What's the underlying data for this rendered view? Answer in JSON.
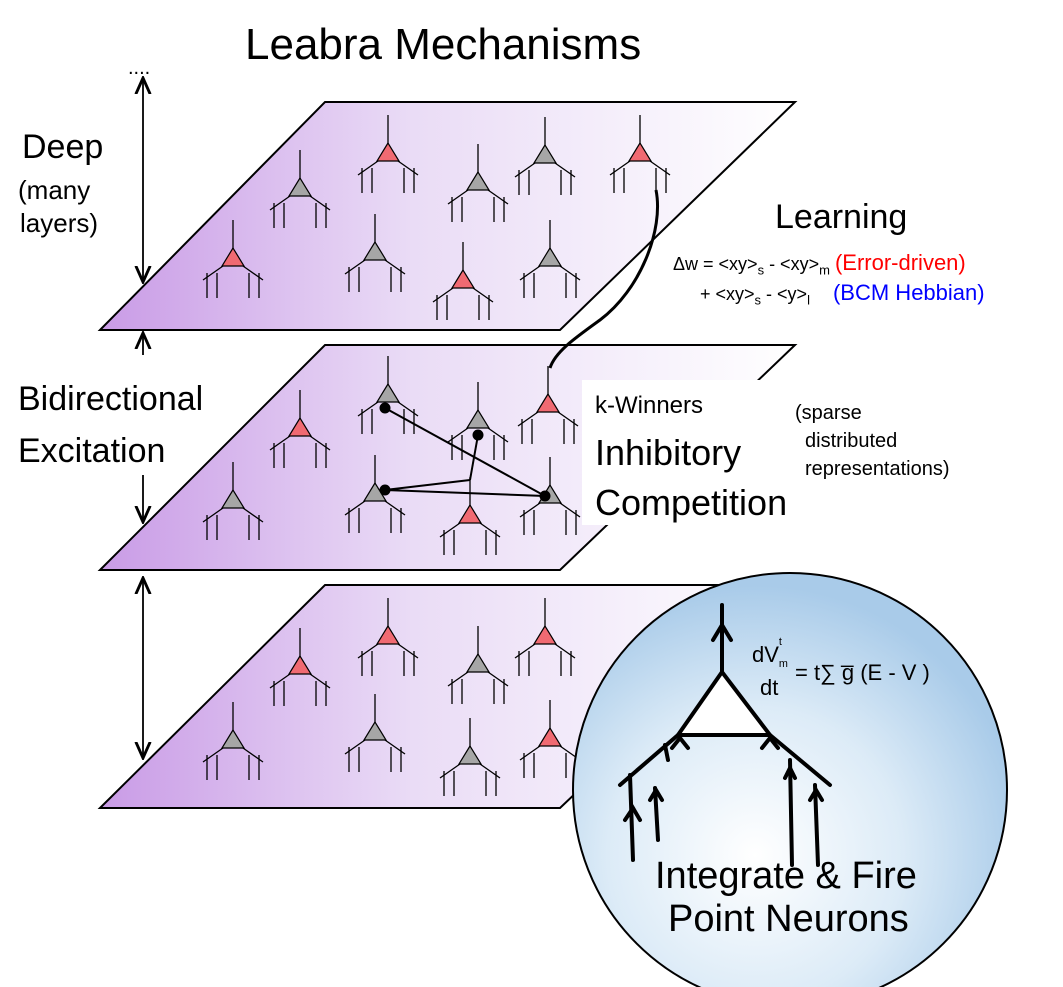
{
  "title": "Leabra Mechanisms",
  "ellipsis": "....",
  "deep": {
    "title": "Deep",
    "sub1": "(many",
    "sub2": "layers)"
  },
  "bidirectional": {
    "line1": "Bidirectional",
    "line2": "Excitation"
  },
  "learning": {
    "title": "Learning",
    "line1_prefix": "Δw = <xy>",
    "line1_s": "s",
    "line1_mid": " - <xy>",
    "line1_m": "m",
    "line1_tag": "(Error-driven)",
    "line2_prefix": "+ <xy>",
    "line2_s": "s",
    "line2_mid": " - <y>",
    "line2_l": "l",
    "line2_tag": "(BCM Hebbian)"
  },
  "kwta": {
    "line1": "k-Winners",
    "line2": "Inhibitory",
    "line3": "Competition",
    "note1": "(sparse",
    "note2": "distributed",
    "note3": "representations)"
  },
  "neuron": {
    "eq_top": "dV",
    "eq_top_sub": "m",
    "eq_top_sup": "t",
    "eq_bottom": "dt",
    "eq_rhs": "= t∑ g̅ (E  - V  )",
    "caption1": "Integrate & Fire",
    "caption2": "Point Neurons"
  },
  "colors": {
    "layer_purple": "#c99be6",
    "active_neuron": "#f06a72",
    "inactive_neuron": "#a6a6a6",
    "error_driven": "#ff0000",
    "hebbian": "#0000ff",
    "sphere": "#b9d7ef"
  }
}
